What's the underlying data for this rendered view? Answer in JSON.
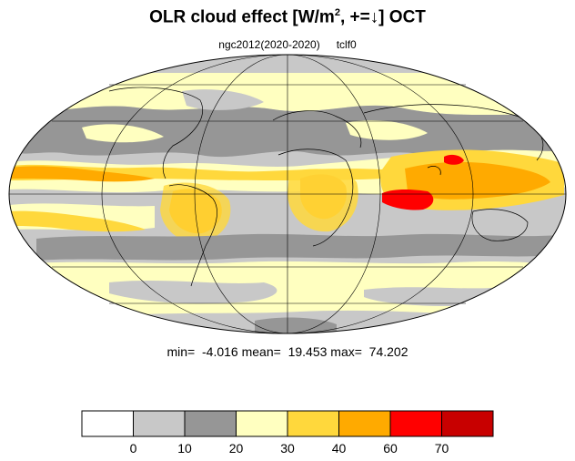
{
  "title": {
    "main": "OLR cloud effect [W/m",
    "sup": "2",
    "rest": ", +=↓]  OCT"
  },
  "subtitle": {
    "case": "ngc2012(2020-2020)",
    "variable": "tclf0"
  },
  "stats": {
    "min": "min=  -4.016",
    "mean": "mean=  19.453",
    "max": "max=  74.202"
  },
  "colorbar": {
    "levels": [
      "0",
      "10",
      "20",
      "30",
      "40",
      "60",
      "70"
    ],
    "colors": [
      "#ffffff",
      "#c8c8c8",
      "#969696",
      "#ffffc0",
      "#ffd83c",
      "#ffaa00",
      "#ff0000",
      "#c80000"
    ]
  },
  "map": {
    "projection": "Mollweide",
    "field_colors": {
      "base": "#c8c8c8",
      "dark": "#969696",
      "light_yellow": "#ffffc0",
      "yellow": "#ffd83c",
      "orange": "#ffaa00",
      "red": "#ff0000",
      "dark_red": "#c80000"
    }
  }
}
